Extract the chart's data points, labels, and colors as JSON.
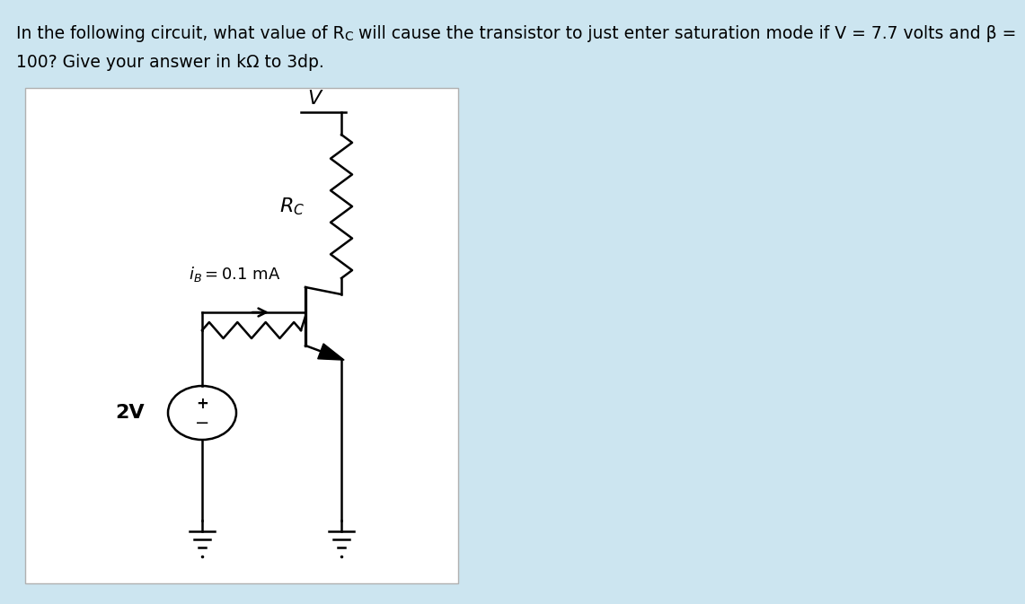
{
  "bg_color": "#cce5f0",
  "panel_bg": "#ffffff",
  "panel_edge": "#b0b0b0",
  "text_color": "#000000",
  "line1_part1": "In the following circuit, what value of R",
  "line1_sub": "C",
  "line1_part2": " will cause the transistor to just enter saturation mode if V = 7.7 volts and β =",
  "line2": "100? Give your answer in kΩ to 3dp.",
  "label_V": "V",
  "label_Rc": "$R_C$",
  "label_ib": "$i_B = 0.1$ mA",
  "label_2V": "2V",
  "label_plus": "+",
  "label_minus": "−"
}
